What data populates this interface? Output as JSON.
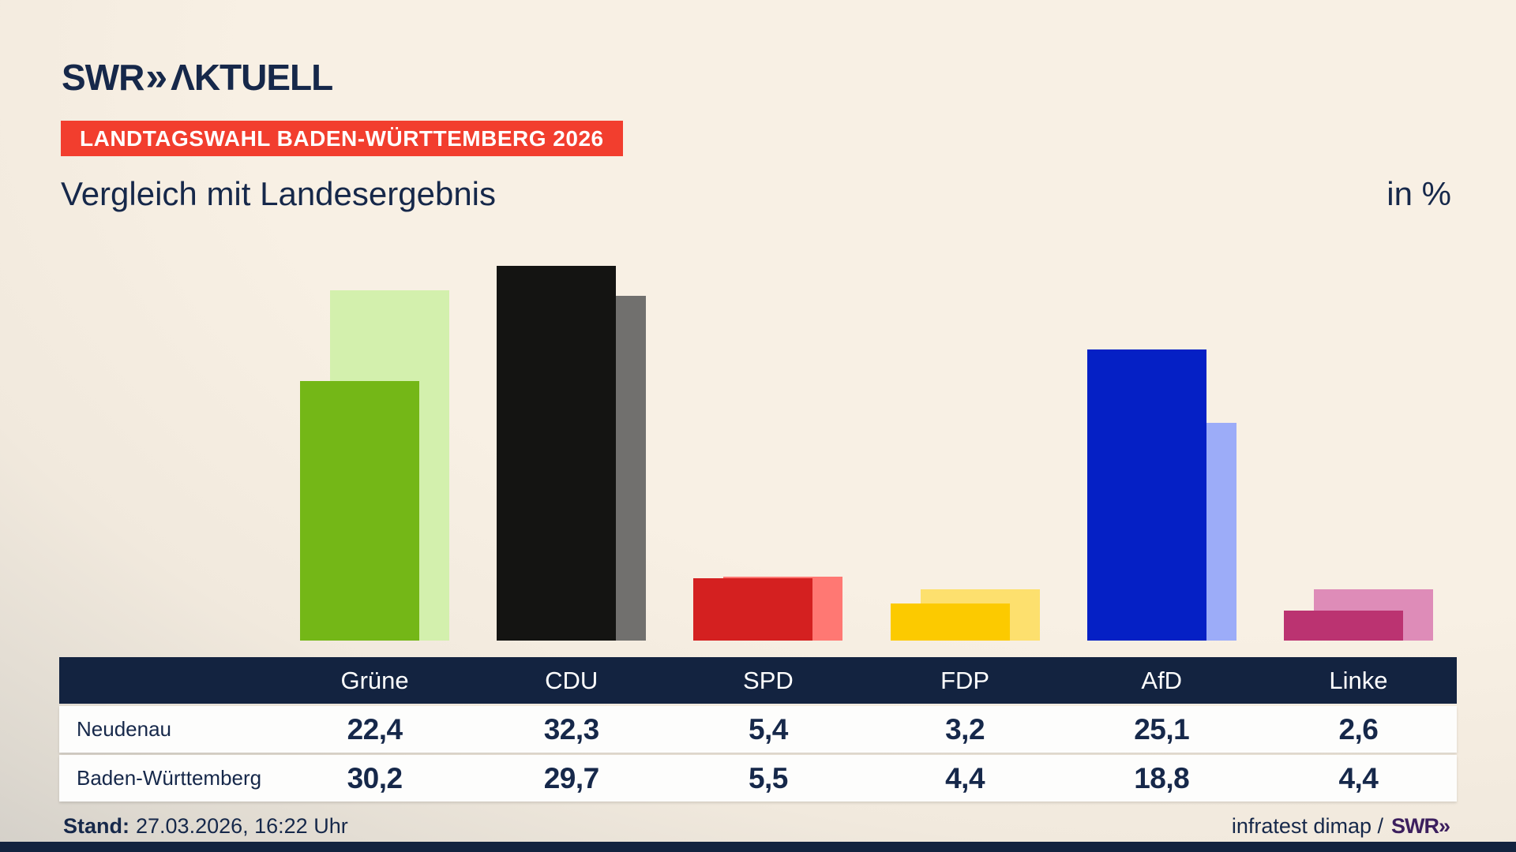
{
  "header": {
    "logo_swr": "SWR",
    "logo_chevrons": "»",
    "logo_aktuell": "ΛKTUELL",
    "badge": "LANDTAGSWAHL BADEN-WÜRTTEMBERG 2026",
    "title": "Vergleich mit Landesergebnis",
    "unit_label": "in %"
  },
  "chart_data": {
    "type": "bar",
    "title": "Vergleich mit Landesergebnis",
    "unit": "in %",
    "categories": [
      "Grüne",
      "CDU",
      "SPD",
      "FDP",
      "AfD",
      "Linke"
    ],
    "series": [
      {
        "name": "Neudenau",
        "values": [
          22.4,
          32.3,
          5.4,
          3.2,
          25.1,
          2.6
        ]
      },
      {
        "name": "Baden-Württemberg",
        "values": [
          30.2,
          29.7,
          5.5,
          4.4,
          18.8,
          4.4
        ]
      }
    ],
    "ylim": [
      0,
      35
    ],
    "grid": false,
    "legend_position": "table-below",
    "front_colors": [
      "#74b717",
      "#141412",
      "#d42020",
      "#fcca00",
      "#0520c5",
      "#bb3371"
    ],
    "back_colors": [
      "#d3f0ad",
      "#71706e",
      "#ff7873",
      "#fde06e",
      "#9cacf8",
      "#de8cb8"
    ]
  },
  "colors": {
    "background_cream": "#f7efe3",
    "background_grey": "#c8c5c1",
    "navy": "#16284a",
    "table_header_bg": "#132340",
    "badge_red": "#f23e2e",
    "brand_purple": "#3c1f5e",
    "row_bg": "#fdfdfc"
  },
  "footer": {
    "stand_label": "Stand:",
    "stand_value": "27.03.2026, 16:22 Uhr",
    "source_text": "infratest dimap /",
    "source_brand": "SWR»"
  }
}
